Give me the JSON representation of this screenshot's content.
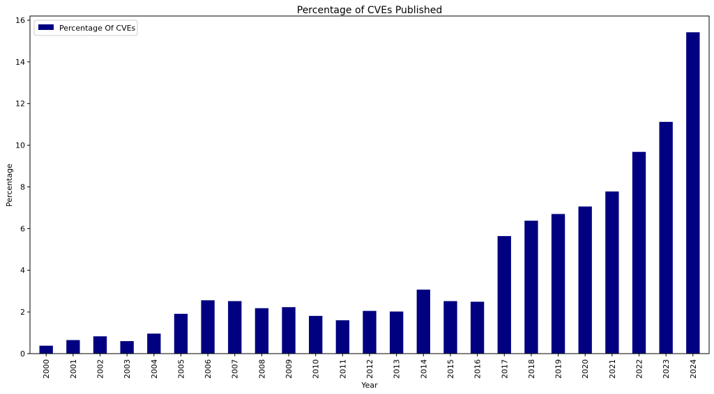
{
  "chart_data": {
    "type": "bar",
    "title": "Percentage of CVEs Published",
    "xlabel": "Year",
    "ylabel": "Percentage",
    "ylim": [
      0,
      16.2
    ],
    "yticks": [
      0,
      2,
      4,
      6,
      8,
      10,
      12,
      14,
      16
    ],
    "grid": false,
    "legend_position": "top-left",
    "categories": [
      "2000",
      "2001",
      "2002",
      "2003",
      "2004",
      "2005",
      "2006",
      "2007",
      "2008",
      "2009",
      "2010",
      "2011",
      "2012",
      "2013",
      "2014",
      "2015",
      "2016",
      "2017",
      "2018",
      "2019",
      "2020",
      "2021",
      "2022",
      "2023",
      "2024"
    ],
    "series": [
      {
        "name": "Percentage Of CVEs",
        "color": "#000080",
        "values": [
          0.38,
          0.65,
          0.83,
          0.6,
          0.96,
          1.91,
          2.56,
          2.52,
          2.18,
          2.23,
          1.81,
          1.6,
          2.05,
          2.02,
          3.07,
          2.52,
          2.49,
          5.64,
          6.38,
          6.7,
          7.06,
          7.78,
          9.68,
          11.12,
          15.42
        ]
      }
    ]
  }
}
